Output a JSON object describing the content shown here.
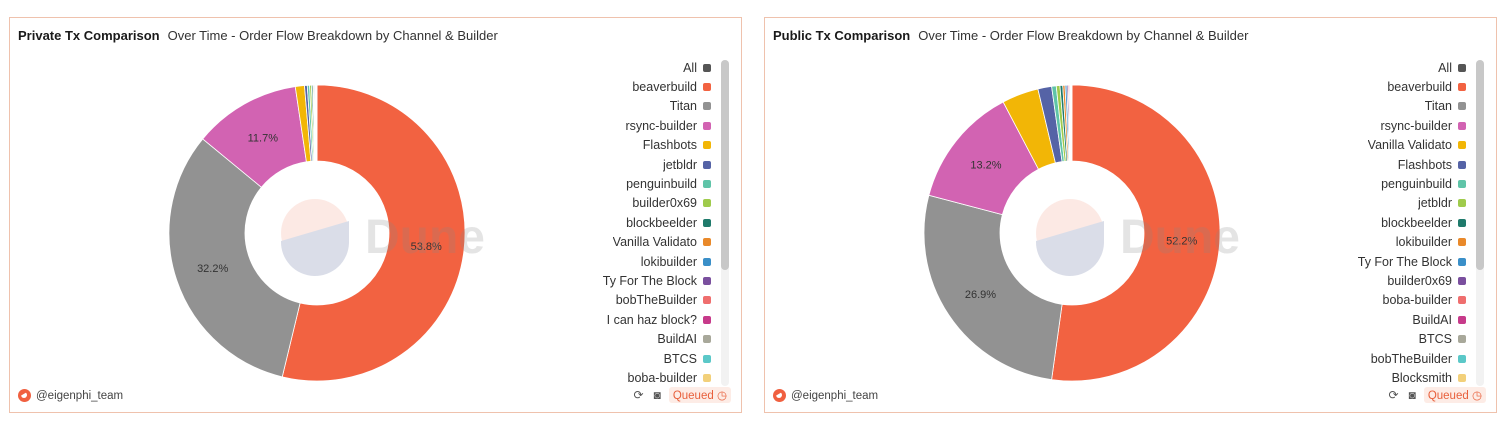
{
  "panels": [
    {
      "title": "Private Tx Comparison",
      "subtitle": "Over Time - Order Flow Breakdown by Channel & Builder",
      "author": "@eigenphi_team",
      "status": "Queued",
      "watermark": "Dune",
      "legend": [
        {
          "label": "All",
          "color": "#555555"
        },
        {
          "label": "beaverbuild",
          "color": "#f26241"
        },
        {
          "label": "Titan",
          "color": "#929292"
        },
        {
          "label": "rsync-builder",
          "color": "#d263b2"
        },
        {
          "label": "Flashbots",
          "color": "#f2b606"
        },
        {
          "label": "jetbldr",
          "color": "#5563a6"
        },
        {
          "label": "penguinbuild",
          "color": "#5fc4a8"
        },
        {
          "label": "builder0x69",
          "color": "#9fcb4c"
        },
        {
          "label": "blockbeelder",
          "color": "#1f7a6b"
        },
        {
          "label": "Vanilla Validato",
          "color": "#e9892a"
        },
        {
          "label": "lokibuilder",
          "color": "#3a8fc8"
        },
        {
          "label": "Ty For The Block",
          "color": "#7a4f9e"
        },
        {
          "label": "bobTheBuilder",
          "color": "#ef6e6e"
        },
        {
          "label": "I can haz block?",
          "color": "#c73a8a"
        },
        {
          "label": "BuildAI",
          "color": "#a8a89a"
        },
        {
          "label": "BTCS",
          "color": "#5bc8c8"
        },
        {
          "label": "boba-builder",
          "color": "#f2d07a"
        }
      ],
      "chart_data": {
        "type": "pie",
        "donut": true,
        "slices": [
          {
            "label": "beaverbuild",
            "value": 53.8,
            "color": "#f26241",
            "shown_label": "53.8%"
          },
          {
            "label": "Titan",
            "value": 32.2,
            "color": "#929292",
            "shown_label": "32.2%"
          },
          {
            "label": "rsync-builder",
            "value": 11.7,
            "color": "#d263b2",
            "shown_label": "11.7%"
          },
          {
            "label": "Flashbots",
            "value": 1.0,
            "color": "#f2b606",
            "shown_label": ""
          },
          {
            "label": "jetbldr",
            "value": 0.3,
            "color": "#5563a6",
            "shown_label": ""
          },
          {
            "label": "penguinbuild",
            "value": 0.25,
            "color": "#5fc4a8",
            "shown_label": ""
          },
          {
            "label": "builder0x69",
            "value": 0.2,
            "color": "#9fcb4c",
            "shown_label": ""
          },
          {
            "label": "blockbeelder",
            "value": 0.15,
            "color": "#1f7a6b",
            "shown_label": ""
          },
          {
            "label": "Vanilla Validato",
            "value": 0.1,
            "color": "#e9892a",
            "shown_label": ""
          },
          {
            "label": "lokibuilder",
            "value": 0.1,
            "color": "#3a8fc8",
            "shown_label": ""
          },
          {
            "label": "Ty For The Block",
            "value": 0.08,
            "color": "#7a4f9e",
            "shown_label": ""
          },
          {
            "label": "bobTheBuilder",
            "value": 0.06,
            "color": "#ef6e6e",
            "shown_label": ""
          },
          {
            "label": "I can haz block?",
            "value": 0.04,
            "color": "#c73a8a",
            "shown_label": ""
          },
          {
            "label": "BuildAI",
            "value": 0.03,
            "color": "#a8a89a",
            "shown_label": ""
          },
          {
            "label": "BTCS",
            "value": 0.02,
            "color": "#5bc8c8",
            "shown_label": ""
          },
          {
            "label": "boba-builder",
            "value": 0.02,
            "color": "#f2d07a",
            "shown_label": ""
          }
        ]
      }
    },
    {
      "title": "Public Tx Comparison",
      "subtitle": "Over Time - Order Flow Breakdown by Channel & Builder",
      "author": "@eigenphi_team",
      "status": "Queued",
      "watermark": "Dune",
      "legend": [
        {
          "label": "All",
          "color": "#555555"
        },
        {
          "label": "beaverbuild",
          "color": "#f26241"
        },
        {
          "label": "Titan",
          "color": "#929292"
        },
        {
          "label": "rsync-builder",
          "color": "#d263b2"
        },
        {
          "label": "Vanilla Validato",
          "color": "#f2b606"
        },
        {
          "label": "Flashbots",
          "color": "#5563a6"
        },
        {
          "label": "penguinbuild",
          "color": "#5fc4a8"
        },
        {
          "label": "jetbldr",
          "color": "#9fcb4c"
        },
        {
          "label": "blockbeelder",
          "color": "#1f7a6b"
        },
        {
          "label": "lokibuilder",
          "color": "#e9892a"
        },
        {
          "label": "Ty For The Block",
          "color": "#3a8fc8"
        },
        {
          "label": "builder0x69",
          "color": "#7a4f9e"
        },
        {
          "label": "boba-builder",
          "color": "#ef6e6e"
        },
        {
          "label": "BuildAI",
          "color": "#c73a8a"
        },
        {
          "label": "BTCS",
          "color": "#a8a89a"
        },
        {
          "label": "bobTheBuilder",
          "color": "#5bc8c8"
        },
        {
          "label": "Blocksmith",
          "color": "#f2d07a"
        }
      ],
      "chart_data": {
        "type": "pie",
        "donut": true,
        "slices": [
          {
            "label": "beaverbuild",
            "value": 52.2,
            "color": "#f26241",
            "shown_label": "52.2%"
          },
          {
            "label": "Titan",
            "value": 26.9,
            "color": "#929292",
            "shown_label": "26.9%"
          },
          {
            "label": "rsync-builder",
            "value": 13.2,
            "color": "#d263b2",
            "shown_label": "13.2%"
          },
          {
            "label": "Vanilla Validato",
            "value": 4.0,
            "color": "#f2b606",
            "shown_label": ""
          },
          {
            "label": "Flashbots",
            "value": 1.5,
            "color": "#5563a6",
            "shown_label": ""
          },
          {
            "label": "penguinbuild",
            "value": 0.5,
            "color": "#5fc4a8",
            "shown_label": ""
          },
          {
            "label": "jetbldr",
            "value": 0.4,
            "color": "#9fcb4c",
            "shown_label": ""
          },
          {
            "label": "blockbeelder",
            "value": 0.3,
            "color": "#1f7a6b",
            "shown_label": ""
          },
          {
            "label": "lokibuilder",
            "value": 0.25,
            "color": "#e9892a",
            "shown_label": ""
          },
          {
            "label": "Ty For The Block",
            "value": 0.2,
            "color": "#3a8fc8",
            "shown_label": ""
          },
          {
            "label": "builder0x69",
            "value": 0.15,
            "color": "#7a4f9e",
            "shown_label": ""
          },
          {
            "label": "boba-builder",
            "value": 0.12,
            "color": "#ef6e6e",
            "shown_label": ""
          },
          {
            "label": "BuildAI",
            "value": 0.1,
            "color": "#c73a8a",
            "shown_label": ""
          },
          {
            "label": "BTCS",
            "value": 0.08,
            "color": "#a8a89a",
            "shown_label": ""
          },
          {
            "label": "bobTheBuilder",
            "value": 0.05,
            "color": "#5bc8c8",
            "shown_label": ""
          },
          {
            "label": "Blocksmith",
            "value": 0.05,
            "color": "#f2d07a",
            "shown_label": ""
          }
        ]
      }
    }
  ]
}
